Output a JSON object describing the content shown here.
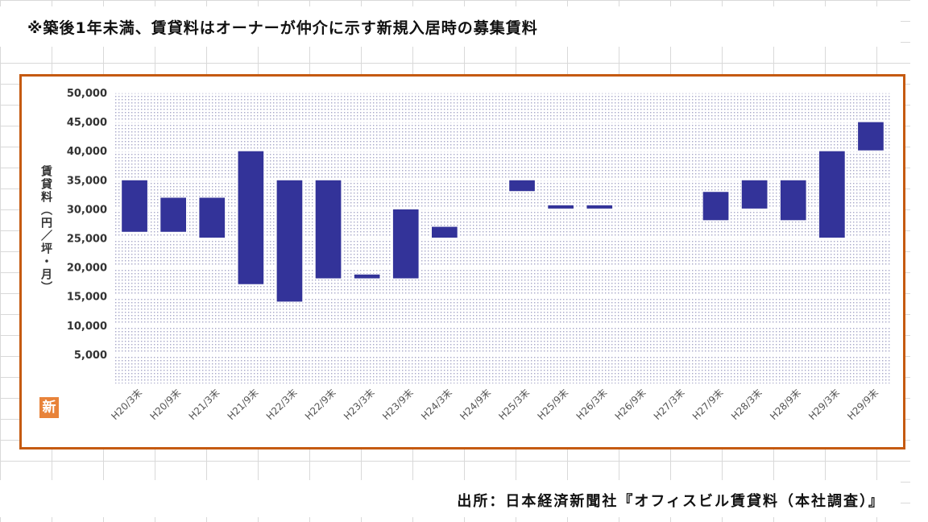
{
  "note": "※築後1年未満、賃貸料はオーナーが仲介に示す新規入居時の募集賃料",
  "source": "出所：日本経済新聞社『オフィスビル賃貸料（本社調査）』",
  "logo_text": "新",
  "colors": {
    "bar": "#333399",
    "frame": "#c55a11",
    "plot_dots": "#a6a6c8",
    "logo": "#e8833a"
  },
  "chart_data": {
    "type": "bar",
    "subtype": "floating-range",
    "title": "",
    "ylabel": "賃貸料（円／坪・月）",
    "xlabel": "",
    "ylim": [
      0,
      50000
    ],
    "yticks": [
      "5,000",
      "10,000",
      "15,000",
      "20,000",
      "25,000",
      "30,000",
      "35,000",
      "40,000",
      "45,000",
      "50,000"
    ],
    "categories": [
      "H20/3末",
      "H20/9末",
      "H21/3末",
      "H21/9末",
      "H22/3末",
      "H22/9末",
      "H23/3末",
      "H23/9末",
      "H24/3末",
      "H24/9末",
      "H25/3末",
      "H25/9末",
      "H26/3末",
      "H26/9末",
      "H27/3末",
      "H27/9末",
      "H28/3末",
      "H28/9末",
      "H29/3末",
      "H29/9末"
    ],
    "ranges": [
      [
        26000,
        35000
      ],
      [
        26000,
        32000
      ],
      [
        25000,
        32000
      ],
      [
        17000,
        40000
      ],
      [
        14000,
        35000
      ],
      [
        18000,
        35000
      ],
      [
        18000,
        18800
      ],
      [
        18000,
        30000
      ],
      [
        25000,
        27000
      ],
      null,
      [
        33000,
        35000
      ],
      [
        30000,
        30700
      ],
      [
        30000,
        30700
      ],
      null,
      null,
      [
        28000,
        33000
      ],
      [
        30000,
        35000
      ],
      [
        28000,
        35000
      ],
      [
        25000,
        40000
      ],
      [
        40000,
        45000
      ]
    ],
    "grid": true,
    "legend": "none"
  }
}
